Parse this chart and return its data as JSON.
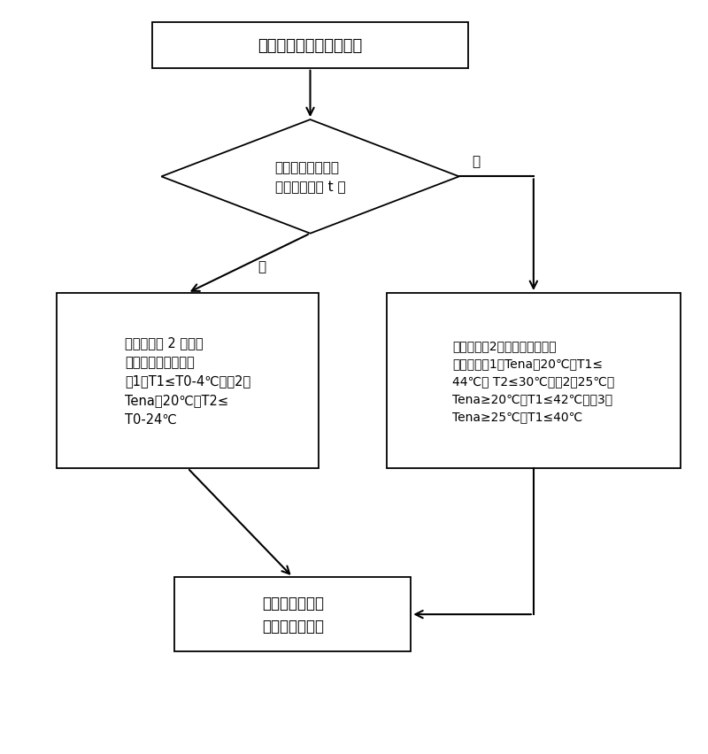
{
  "bg_color": "#ffffff",
  "box_color": "#ffffff",
  "box_edge_color": "#000000",
  "arrow_color": "#000000",
  "title_text": "有开机请求或在制热状态",
  "diamond_line1": "判断当前时间是否",
  "diamond_line2": "在用水时间段 t 内",
  "left_box_lines": [
    "检测到连续 2 秒出现",
    "以下两种情况之一：",
    "（1）T1≤T0-4℃或（2）",
    "Tena＜20℃，T2≤",
    "T0-24℃"
  ],
  "right_box_lines": [
    "检测到连续2秒出现以下三种情",
    "况之一：（1）Tena＜20℃，T1≤",
    "44℃或 T2≤30℃、（2）25℃＞",
    "Tena≥20℃，T1≤42℃或（3）",
    "Tena≥25℃，T1≤40℃"
  ],
  "bottom_box_lines": [
    "开启分体速热式",
    "热泵热水器制热"
  ],
  "yes_label": "是",
  "no_label": "否",
  "figw": 8.0,
  "figh": 8.53,
  "dpi": 100
}
